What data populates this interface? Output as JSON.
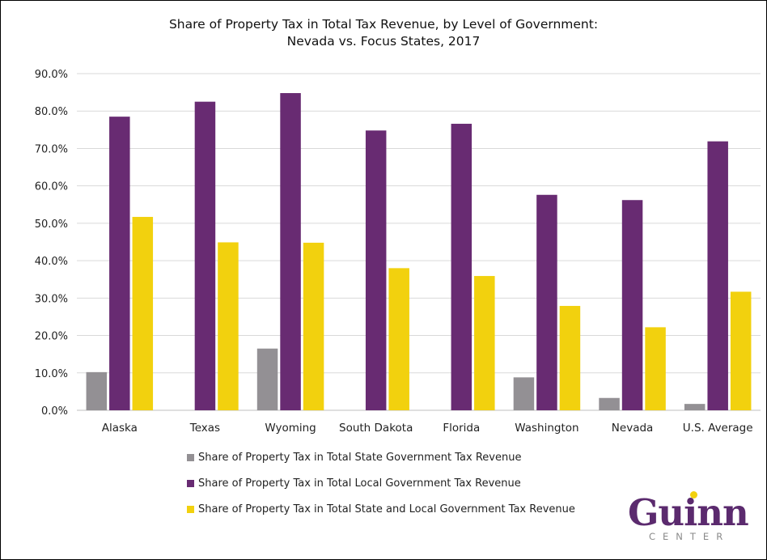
{
  "chart_data": {
    "type": "bar",
    "title_lines": [
      "Share of Property Tax in Total Tax Revenue, by Level of Government:",
      "Nevada vs. Focus States, 2017"
    ],
    "categories": [
      "Alaska",
      "Texas",
      "Wyoming",
      "South Dakota",
      "Florida",
      "Washington",
      "Nevada",
      "U.S. Average"
    ],
    "series": [
      {
        "name": "Share of Property Tax in Total State Government Tax Revenue",
        "color": "#939094",
        "values": [
          10.2,
          0,
          16.5,
          0,
          0,
          8.8,
          3.3,
          1.7
        ]
      },
      {
        "name": "Share of Property Tax in Total Local Government Tax Revenue",
        "color": "#682b72",
        "values": [
          78.5,
          82.5,
          84.8,
          74.8,
          76.6,
          57.6,
          56.2,
          71.9
        ]
      },
      {
        "name": "Share of Property Tax in Total State and Local Government Tax Revenue",
        "color": "#f2d10e",
        "values": [
          51.7,
          44.9,
          44.8,
          38.0,
          35.9,
          27.9,
          22.2,
          31.7
        ]
      }
    ],
    "ylim": [
      0,
      90
    ],
    "yticks": [
      "0.0%",
      "10.0%",
      "20.0%",
      "30.0%",
      "40.0%",
      "50.0%",
      "60.0%",
      "70.0%",
      "80.0%",
      "90.0%"
    ],
    "grid": true,
    "legend_position": "bottom"
  },
  "logo": {
    "word": "Guinn",
    "sub": "CENTER",
    "color": "#5b2a6e",
    "sub_color": "#8a8a8a",
    "dot_color": "#f2d10e"
  }
}
